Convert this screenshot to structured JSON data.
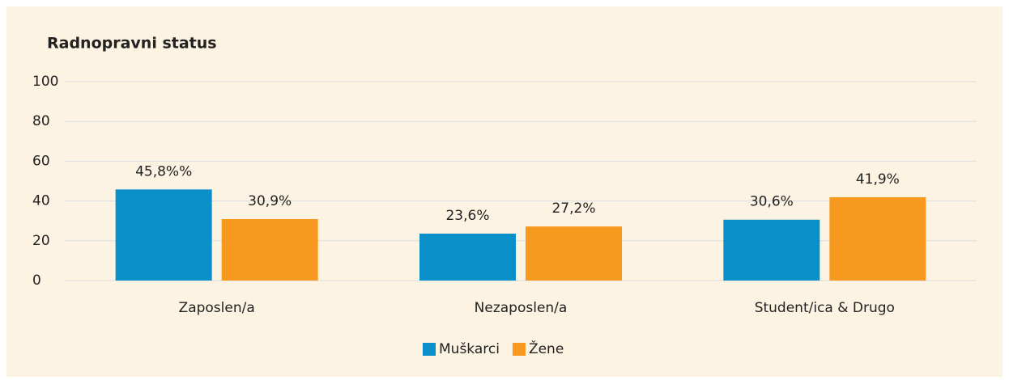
{
  "chart_data": {
    "type": "bar",
    "title": "Radnopravni status",
    "categories": [
      "Zaposlen/a",
      "Nezaposlen/a",
      "Student/ica & Drugo"
    ],
    "series": [
      {
        "name": "Muškarci",
        "color": "#0a90c8",
        "values": [
          45.8,
          23.6,
          30.6
        ],
        "value_labels": [
          "45,8%%",
          "23,6%",
          "30,6%"
        ]
      },
      {
        "name": "Žene",
        "color": "#f7991f",
        "values": [
          30.9,
          27.2,
          41.9
        ],
        "value_labels": [
          "30,9%",
          "27,2%",
          "41,9%"
        ]
      }
    ],
    "ylim": [
      0,
      100
    ],
    "yticks": [
      0,
      20,
      40,
      60,
      80,
      100
    ],
    "grid": true,
    "legend": "bottom"
  }
}
